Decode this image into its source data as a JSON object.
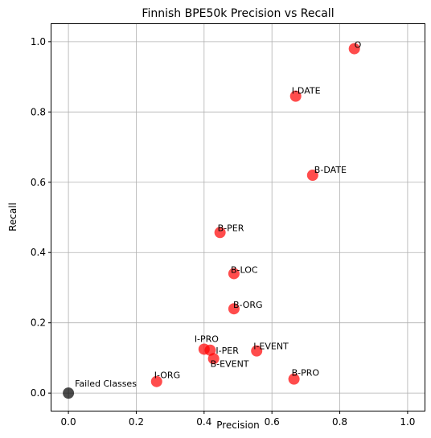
{
  "chart_data": {
    "type": "scatter",
    "title": "Finnish BPE50k Precision vs Recall",
    "xlabel": "Precision",
    "ylabel": "Recall",
    "xlim": [
      -0.05,
      1.05
    ],
    "ylim": [
      -0.05,
      1.05
    ],
    "xticks": [
      0.0,
      0.2,
      0.4,
      0.6,
      0.8,
      1.0
    ],
    "yticks": [
      0.0,
      0.2,
      0.4,
      0.6,
      0.8,
      1.0
    ],
    "grid": true,
    "colors": {
      "class_point": "#ff0000",
      "failed_point": "#000000",
      "grid": "#b0b0b0"
    },
    "points": [
      {
        "label": "O",
        "x": 0.843,
        "y": 0.98,
        "color": "#ff0000"
      },
      {
        "label": "I-DATE",
        "x": 0.67,
        "y": 0.845,
        "color": "#ff0000"
      },
      {
        "label": "B-DATE",
        "x": 0.72,
        "y": 0.62,
        "color": "#ff0000"
      },
      {
        "label": "B-PER",
        "x": 0.447,
        "y": 0.457,
        "color": "#ff0000"
      },
      {
        "label": "B-LOC",
        "x": 0.488,
        "y": 0.34,
        "color": "#ff0000"
      },
      {
        "label": "B-ORG",
        "x": 0.488,
        "y": 0.24,
        "color": "#ff0000"
      },
      {
        "label": "I-PRO",
        "x": 0.4,
        "y": 0.125,
        "color": "#ff0000"
      },
      {
        "label": "I-PER",
        "x": 0.418,
        "y": 0.122,
        "color": "#ff0000"
      },
      {
        "label": "B-EVENT",
        "x": 0.428,
        "y": 0.098,
        "color": "#ff0000"
      },
      {
        "label": "I-EVENT",
        "x": 0.555,
        "y": 0.12,
        "color": "#ff0000"
      },
      {
        "label": "I-ORG",
        "x": 0.26,
        "y": 0.033,
        "color": "#ff0000"
      },
      {
        "label": "B-PRO",
        "x": 0.665,
        "y": 0.04,
        "color": "#ff0000"
      },
      {
        "label": "Failed Classes",
        "x": 0.0,
        "y": 0.0,
        "color": "#000000"
      }
    ]
  }
}
